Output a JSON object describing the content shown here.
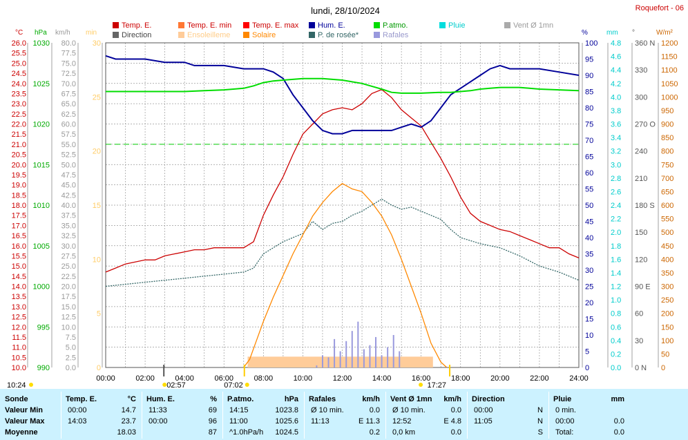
{
  "title": "lundi, 28/10/2024",
  "station": "Roquefort - 06",
  "legend": [
    {
      "label": "Temp. E.",
      "color": "#cc0000"
    },
    {
      "label": "Temp. E. min",
      "color": "#ff7733"
    },
    {
      "label": "Temp. E. max",
      "color": "#ff0000"
    },
    {
      "label": "Hum. E.",
      "color": "#000099"
    },
    {
      "label": "P.atmo.",
      "color": "#00dd00"
    },
    {
      "label": "Pluie",
      "color": "#00dddd"
    },
    {
      "label": "Vent Ø 1mn",
      "color": "#aaaaaa"
    },
    {
      "label": "Direction",
      "color": "#666666"
    },
    {
      "label": "Ensoleilleme",
      "color": "#ffcc99"
    },
    {
      "label": "Solaire",
      "color": "#ff8800"
    },
    {
      "label": "P. de rosée*",
      "color": "#336666"
    },
    {
      "label": "Rafales",
      "color": "#9999dd"
    }
  ],
  "axes": {
    "temp": {
      "unit": "°C",
      "ticks": [
        "26.0",
        "25.5",
        "25.0",
        "24.5",
        "24.0",
        "23.5",
        "23.0",
        "22.5",
        "22.0",
        "21.5",
        "21.0",
        "20.5",
        "20.0",
        "19.5",
        "19.0",
        "18.5",
        "18.0",
        "17.5",
        "17.0",
        "16.5",
        "16.0",
        "15.5",
        "15.0",
        "14.5",
        "14.0",
        "13.5",
        "13.0",
        "12.5",
        "12.0",
        "11.5",
        "11.0",
        "10.5",
        "10.0"
      ],
      "color": "#cc0000"
    },
    "press": {
      "unit": "hPa",
      "ticks": [
        "1030",
        "1025",
        "1020",
        "1015",
        "1010",
        "1005",
        "1000",
        "995",
        "990"
      ],
      "color": "#00aa00"
    },
    "wind": {
      "unit": "km/h",
      "ticks": [
        "80.0",
        "77.5",
        "75.0",
        "72.5",
        "70.0",
        "67.5",
        "65.0",
        "62.5",
        "60.0",
        "57.5",
        "55.0",
        "52.5",
        "50.0",
        "47.5",
        "45.0",
        "42.5",
        "40.0",
        "37.5",
        "35.0",
        "32.5",
        "30.0",
        "27.5",
        "25.0",
        "22.5",
        "20.0",
        "17.5",
        "15.0",
        "12.5",
        "10.0",
        "7.5",
        "5.0",
        "2.5",
        "0.0"
      ],
      "color": "#999999"
    },
    "sun": {
      "unit": "min",
      "ticks": [
        "30",
        "25",
        "20",
        "15",
        "10",
        "5",
        "0"
      ],
      "color": "#ffcc66"
    },
    "hum": {
      "unit": "%",
      "ticks": [
        "100",
        "95",
        "90",
        "85",
        "80",
        "75",
        "70",
        "65",
        "60",
        "55",
        "50",
        "45",
        "40",
        "35",
        "30",
        "25",
        "20",
        "15",
        "10",
        "5",
        "0"
      ],
      "color": "#000099"
    },
    "rain": {
      "unit": "mm",
      "ticks": [
        "4.8",
        "4.6",
        "4.4",
        "4.2",
        "4.0",
        "3.8",
        "3.6",
        "3.4",
        "3.2",
        "3.0",
        "2.8",
        "2.6",
        "2.4",
        "2.2",
        "2.0",
        "1.8",
        "1.6",
        "1.4",
        "1.2",
        "1.0",
        "0.8",
        "0.6",
        "0.4",
        "0.2",
        "0.0"
      ],
      "color": "#00cccc"
    },
    "dir": {
      "unit": "°",
      "ticks": [
        "360 N",
        "330",
        "300",
        "270 O",
        "240",
        "210",
        "180 S",
        "150",
        "120",
        "90 E",
        "60",
        "30",
        "0  N"
      ],
      "color": "#555555"
    },
    "solar": {
      "unit": "W/m²",
      "ticks": [
        "1200",
        "1150",
        "1100",
        "1050",
        "1000",
        "950",
        "900",
        "850",
        "800",
        "750",
        "700",
        "650",
        "600",
        "550",
        "500",
        "450",
        "400",
        "350",
        "300",
        "250",
        "200",
        "150",
        "100",
        "50",
        "0"
      ],
      "color": "#cc6600"
    },
    "x_ticks": [
      "00:00",
      "02:00",
      "04:00",
      "06:00",
      "08:00",
      "10:00",
      "12:00",
      "14:00",
      "16:00",
      "18:00",
      "20:00",
      "22:00",
      "24:00"
    ]
  },
  "sun_events": {
    "moonrise": "10:24",
    "moonset": "02:57",
    "sunrise": "07:02",
    "sunset": "17:27"
  },
  "chart_data": {
    "type": "line",
    "x_unit": "hours",
    "series": [
      {
        "name": "Temp. E.",
        "axis": "temp",
        "color": "#cc0000",
        "x": [
          0,
          0.5,
          1,
          1.5,
          2,
          2.5,
          3,
          3.5,
          4,
          4.5,
          5,
          5.5,
          6,
          6.5,
          7,
          7.5,
          8,
          8.5,
          9,
          9.5,
          10,
          10.5,
          11,
          11.5,
          12,
          12.5,
          13,
          13.5,
          14,
          14.5,
          15,
          15.5,
          16,
          16.5,
          17,
          17.5,
          18,
          18.5,
          19,
          19.5,
          20,
          20.5,
          21,
          21.5,
          22,
          22.5,
          23,
          23.5,
          24
        ],
        "y": [
          14.7,
          14.9,
          15.1,
          15.2,
          15.3,
          15.3,
          15.5,
          15.6,
          15.7,
          15.8,
          15.8,
          15.9,
          15.9,
          15.9,
          15.9,
          16.2,
          17.5,
          18.5,
          19.4,
          20.5,
          21.5,
          22.0,
          22.5,
          22.7,
          22.8,
          22.7,
          23.0,
          23.5,
          23.7,
          23.3,
          22.7,
          22.3,
          21.9,
          21.1,
          20.3,
          19.4,
          18.4,
          17.6,
          17.2,
          17.0,
          16.8,
          16.7,
          16.5,
          16.3,
          16.1,
          15.9,
          15.9,
          15.6,
          15.4
        ]
      },
      {
        "name": "P. de rosée*",
        "axis": "temp",
        "color": "#336666",
        "x": [
          0,
          1,
          2,
          3,
          4,
          5,
          6,
          7,
          7.5,
          8,
          8.5,
          9,
          9.5,
          10,
          10.5,
          11,
          11.5,
          12,
          12.5,
          13,
          13.5,
          14,
          14.5,
          15,
          15.5,
          16,
          16.5,
          17,
          17.5,
          18,
          19,
          20,
          21,
          22,
          23,
          24
        ],
        "y": [
          14.0,
          14.1,
          14.2,
          14.3,
          14.4,
          14.5,
          14.6,
          14.7,
          14.9,
          15.6,
          15.9,
          16.2,
          16.4,
          16.6,
          17.2,
          16.8,
          17.1,
          17.2,
          17.5,
          17.7,
          18.0,
          18.3,
          18.0,
          17.8,
          17.9,
          17.7,
          17.5,
          17.3,
          16.8,
          16.4,
          16.1,
          15.9,
          15.5,
          15.0,
          14.7,
          14.3
        ]
      },
      {
        "name": "Hum. E.",
        "axis": "hum",
        "color": "#000099",
        "x": [
          0,
          0.5,
          1,
          2,
          3,
          4,
          4.5,
          5,
          6,
          7,
          7.5,
          8,
          8.5,
          9,
          9.5,
          10,
          10.5,
          11,
          11.5,
          12,
          12.5,
          13,
          13.5,
          14,
          14.5,
          15,
          15.5,
          16,
          16.5,
          17,
          17.5,
          18,
          18.5,
          19,
          19.5,
          20,
          20.5,
          21,
          22,
          23,
          24
        ],
        "y": [
          96,
          95,
          95,
          95,
          94,
          94,
          93,
          93,
          93,
          92,
          92,
          92,
          91,
          89,
          84,
          80,
          76,
          73,
          72,
          72,
          73,
          73,
          73,
          73,
          73,
          74,
          75,
          74,
          76,
          80,
          84,
          86,
          88,
          90,
          92,
          93,
          92,
          92,
          92,
          91,
          90
        ]
      },
      {
        "name": "P.atmo.",
        "axis": "press",
        "color": "#00dd00",
        "x": [
          0,
          1,
          2,
          3,
          4,
          5,
          6,
          7,
          7.5,
          8,
          8.5,
          9,
          9.5,
          10,
          10.5,
          11,
          12,
          13,
          14,
          14.5,
          15,
          15.5,
          16,
          17,
          17.5,
          18,
          18.5,
          19,
          19.5,
          20,
          20.5,
          21,
          22,
          23,
          24
        ],
        "y": [
          1024.0,
          1024.0,
          1024.0,
          1024.0,
          1024.0,
          1024.1,
          1024.2,
          1024.4,
          1024.7,
          1025.1,
          1025.3,
          1025.4,
          1025.5,
          1025.6,
          1025.6,
          1025.6,
          1025.4,
          1025.0,
          1024.3,
          1023.9,
          1023.8,
          1023.8,
          1023.8,
          1023.9,
          1023.9,
          1024.0,
          1024.1,
          1024.3,
          1024.4,
          1024.5,
          1024.5,
          1024.5,
          1024.3,
          1024.2,
          1024.1
        ]
      },
      {
        "name": "Solaire",
        "axis": "solar",
        "color": "#ff8800",
        "x": [
          7.0,
          7.3,
          7.6,
          8,
          8.5,
          9,
          9.5,
          10,
          10.5,
          11,
          11.5,
          12,
          12.5,
          13,
          13.5,
          14,
          14.5,
          15,
          15.5,
          16,
          16.5,
          17,
          17.3
        ],
        "y": [
          0,
          30,
          90,
          170,
          260,
          340,
          420,
          490,
          560,
          610,
          650,
          680,
          660,
          650,
          610,
          560,
          490,
          400,
          300,
          200,
          90,
          20,
          0
        ]
      },
      {
        "name": "Rafales",
        "axis": "wind",
        "color": "#9999dd",
        "x": [
          10.7,
          11.0,
          11.3,
          11.6,
          11.9,
          12.2,
          12.5,
          12.8,
          13.1,
          13.4,
          13.7,
          14.0,
          14.3,
          14.6,
          14.9
        ],
        "y": [
          0.5,
          3.0,
          2.5,
          7.0,
          4.0,
          6.5,
          9.0,
          11.3,
          4.5,
          5.5,
          7.5,
          3.0,
          5.0,
          8.0,
          4.0
        ]
      }
    ],
    "sunshine_band": {
      "axis": "sun",
      "x": [
        7.2,
        16.6
      ],
      "y": 1.0
    },
    "dashed_line": {
      "axis": "press",
      "y": 1017.5
    },
    "ylim": {
      "temp": [
        10,
        26
      ],
      "press": [
        990,
        1030
      ],
      "wind": [
        0,
        80
      ],
      "sun": [
        0,
        30
      ],
      "hum": [
        0,
        100
      ],
      "rain": [
        0,
        5
      ],
      "dir": [
        0,
        360
      ],
      "solar": [
        0,
        1200
      ]
    }
  },
  "summary": [
    {
      "name": "Sonde",
      "rows": [
        {
          "label": "Valeur Min"
        },
        {
          "label": "Valeur Max"
        },
        {
          "label": "Moyenne"
        }
      ]
    },
    {
      "name": "Temp. E.",
      "unit": "°C",
      "rows": [
        {
          "time": "00:00",
          "value": "14.7"
        },
        {
          "time": "14:03",
          "value": "23.7"
        },
        {
          "time": "",
          "value": "18.03"
        }
      ]
    },
    {
      "name": "Hum. E.",
      "unit": "%",
      "rows": [
        {
          "time": "11:33",
          "value": "69"
        },
        {
          "time": "00:00",
          "value": "96"
        },
        {
          "time": "",
          "value": "87"
        }
      ]
    },
    {
      "name": "P.atmo.",
      "unit": "hPa",
      "rows": [
        {
          "time": "14:15",
          "value": "1023.8"
        },
        {
          "time": "11:00",
          "value": "1025.6"
        },
        {
          "time": "^1.0hPa/h",
          "value": "1024.5"
        }
      ]
    },
    {
      "name": "Rafales",
      "unit": "km/h",
      "rows": [
        {
          "time": "Ø 10 min.",
          "value": "0.0"
        },
        {
          "time": "11:13",
          "value": "E 11.3"
        },
        {
          "time": "",
          "value": "0.2"
        }
      ]
    },
    {
      "name": "Vent Ø 1mn",
      "unit": "km/h",
      "rows": [
        {
          "time": "Ø 10 min.",
          "value": "0.0"
        },
        {
          "time": "12:52",
          "value": "E 4.8"
        },
        {
          "time": "0,0 km",
          "value": "0.0"
        }
      ]
    },
    {
      "name": "Direction",
      "unit": "",
      "rows": [
        {
          "time": "00:00",
          "value": "N"
        },
        {
          "time": "11:05",
          "value": "N"
        },
        {
          "time": "",
          "value": "S"
        }
      ]
    },
    {
      "name": "Pluie",
      "unit": "mm",
      "rows": [
        {
          "time": "0 min.",
          "value": ""
        },
        {
          "time": "00:00",
          "value": "0.0"
        },
        {
          "time": "Total:",
          "value": "0.0"
        }
      ]
    }
  ]
}
